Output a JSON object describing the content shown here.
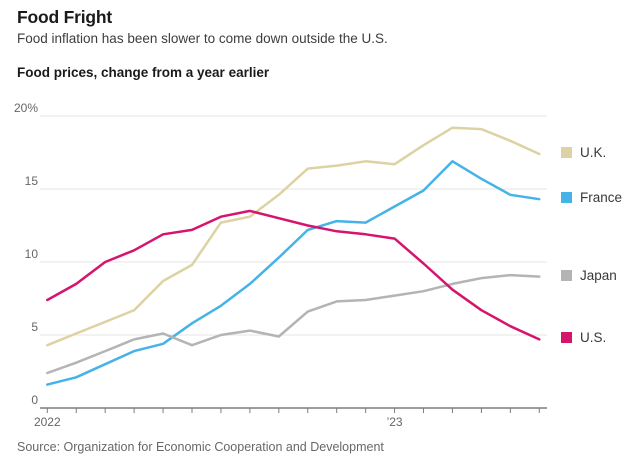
{
  "header": {
    "title": "Food Fright",
    "subtitle": "Food inflation has been slower to come down outside the U.S."
  },
  "chart": {
    "kicker": "Food prices, change from a year earlier"
  },
  "chart_data": {
    "type": "line",
    "title": "Food prices, change from a year earlier",
    "x": [
      "Jan 2022",
      "Feb 2022",
      "Mar 2022",
      "Apr 2022",
      "May 2022",
      "Jun 2022",
      "Jul 2022",
      "Aug 2022",
      "Sep 2022",
      "Oct 2022",
      "Nov 2022",
      "Dec 2022",
      "Jan 2023",
      "Feb 2023",
      "Mar 2023",
      "Apr 2023",
      "May 2023",
      "Jun 2023"
    ],
    "series": [
      {
        "name": "U.K.",
        "color": "#ddd2a3",
        "values": [
          4.3,
          5.1,
          5.9,
          6.7,
          8.7,
          9.8,
          12.7,
          13.1,
          14.6,
          16.4,
          16.6,
          16.9,
          16.7,
          18.0,
          19.2,
          19.1,
          18.3,
          17.4
        ]
      },
      {
        "name": "France",
        "color": "#45b2e8",
        "values": [
          1.6,
          2.1,
          3.0,
          3.9,
          4.4,
          5.8,
          7.0,
          8.5,
          10.3,
          12.2,
          12.8,
          12.7,
          13.8,
          14.9,
          16.9,
          15.7,
          14.6,
          14.3
        ]
      },
      {
        "name": "Japan",
        "color": "#b4b4b4",
        "values": [
          2.4,
          3.1,
          3.9,
          4.7,
          5.1,
          4.3,
          5.0,
          5.3,
          4.9,
          6.6,
          7.3,
          7.4,
          7.7,
          8.0,
          8.5,
          8.9,
          9.1,
          9.0
        ]
      },
      {
        "name": "U.S.",
        "color": "#d6146e",
        "values": [
          7.4,
          8.5,
          10.0,
          10.8,
          11.9,
          12.2,
          13.1,
          13.5,
          13.0,
          12.5,
          12.1,
          11.9,
          11.6,
          9.9,
          8.1,
          6.7,
          5.6,
          4.7
        ]
      }
    ],
    "ylim": [
      0,
      20
    ],
    "grid": true,
    "legend_position": "right",
    "y_ticks": [
      {
        "value": 20,
        "label": "20%"
      },
      {
        "value": 15,
        "label": "15"
      },
      {
        "value": 10,
        "label": "10"
      },
      {
        "value": 5,
        "label": "5"
      },
      {
        "value": 0,
        "label": "0"
      }
    ],
    "x_tick_labels": [
      {
        "index": 0,
        "label": "2022"
      },
      {
        "index": 12,
        "label": "’23"
      }
    ]
  },
  "source": "Source: Organization for Economic Cooperation and Development"
}
